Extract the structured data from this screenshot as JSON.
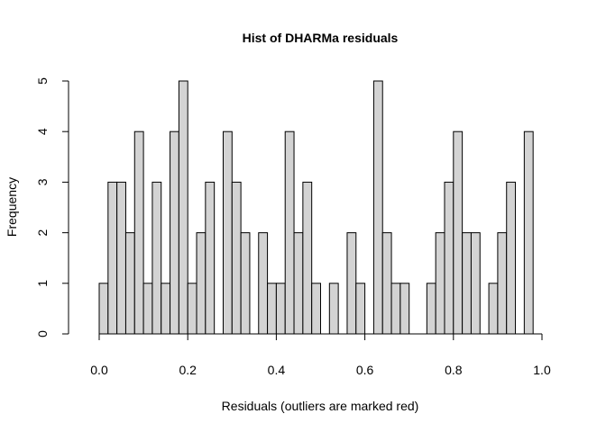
{
  "chart_data": {
    "type": "bar",
    "title": "Hist of DHARMa residuals",
    "xlabel": "Residuals (outliers are marked red)",
    "ylabel": "Frequency",
    "bin_width": 0.02,
    "xlim": [
      0,
      1
    ],
    "ylim": [
      0,
      5
    ],
    "x_ticks": [
      "0.0",
      "0.2",
      "0.4",
      "0.6",
      "0.8",
      "1.0"
    ],
    "y_ticks": [
      "0",
      "1",
      "2",
      "3",
      "4",
      "5"
    ],
    "bar_color": "#d3d3d3",
    "counts": [
      1,
      3,
      3,
      2,
      4,
      1,
      3,
      1,
      4,
      5,
      1,
      2,
      3,
      0,
      4,
      3,
      2,
      0,
      2,
      1,
      1,
      4,
      2,
      3,
      1,
      0,
      1,
      0,
      2,
      1,
      0,
      5,
      2,
      1,
      1,
      0,
      0,
      1,
      2,
      3,
      4,
      2,
      2,
      0,
      1,
      2,
      3,
      0,
      4
    ]
  }
}
